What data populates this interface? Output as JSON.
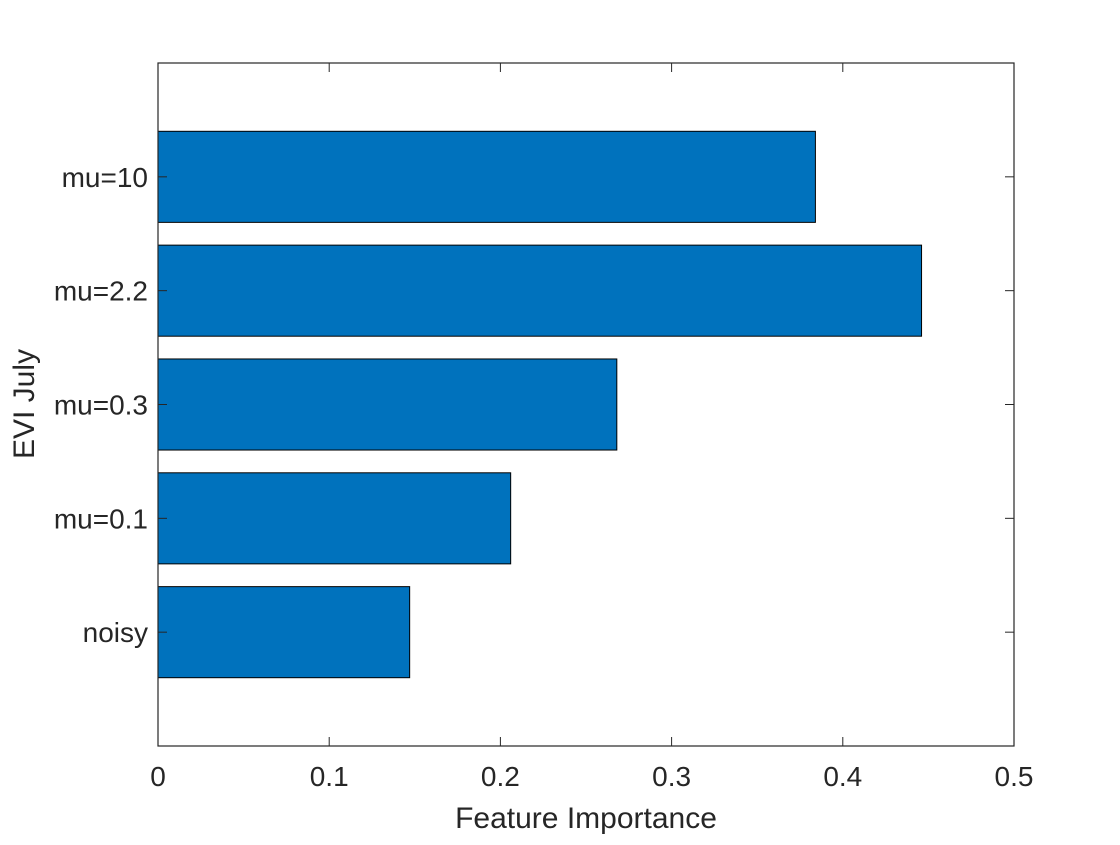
{
  "chart_data": {
    "type": "bar",
    "orientation": "horizontal",
    "categories": [
      "noisy",
      "mu=0.1",
      "mu=0.3",
      "mu=2.2",
      "mu=10"
    ],
    "values": [
      0.147,
      0.206,
      0.268,
      0.446,
      0.384
    ],
    "xlabel": "Feature Importance",
    "ylabel": "EVI July",
    "xlim": [
      0,
      0.5
    ],
    "xticks": [
      "0",
      "0.1",
      "0.2",
      "0.3",
      "0.4",
      "0.5"
    ],
    "grid": false,
    "bar_color": "#0072BD",
    "bar_edge_color": "#000000"
  }
}
